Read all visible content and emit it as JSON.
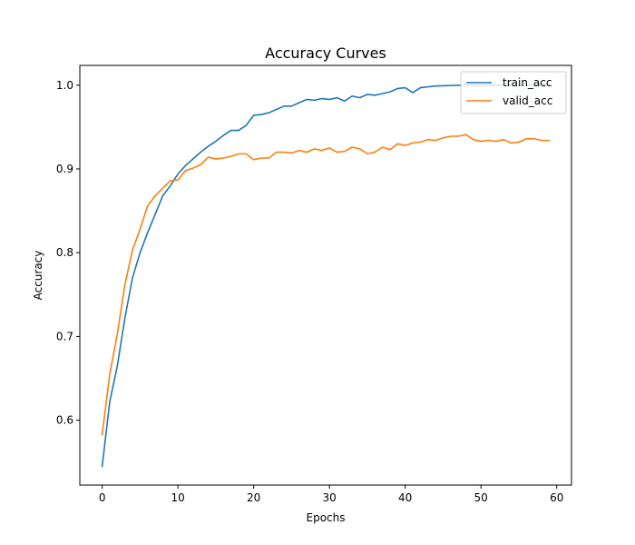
{
  "chart_data": {
    "type": "line",
    "title": "Accuracy Curves",
    "xlabel": "Epochs",
    "ylabel": "Accuracy",
    "xlim": [
      -2.95,
      61.95
    ],
    "ylim": [
      0.5226,
      1.0236
    ],
    "xticks": [
      0,
      10,
      20,
      30,
      40,
      50,
      60
    ],
    "yticks": [
      0.6,
      0.7,
      0.8,
      0.9,
      1.0
    ],
    "ytick_labels": [
      "0.6",
      "0.7",
      "0.8",
      "0.9",
      "1.0"
    ],
    "grid": false,
    "legend_position": "top-right",
    "series": [
      {
        "name": "train_acc",
        "color": "#1f77b4",
        "x": [
          0,
          1,
          2,
          3,
          4,
          5,
          6,
          7,
          8,
          9,
          10,
          11,
          12,
          13,
          14,
          15,
          16,
          17,
          18,
          19,
          20,
          21,
          22,
          23,
          24,
          25,
          26,
          27,
          28,
          29,
          30,
          31,
          32,
          33,
          34,
          35,
          36,
          37,
          38,
          39,
          40,
          41,
          42,
          43,
          44,
          45,
          46,
          47,
          48,
          49,
          50,
          51,
          52,
          53,
          54,
          55,
          56,
          57,
          58,
          59
        ],
        "values": [
          0.545,
          0.622,
          0.665,
          0.722,
          0.77,
          0.8,
          0.824,
          0.846,
          0.868,
          0.88,
          0.894,
          0.904,
          0.912,
          0.92,
          0.927,
          0.933,
          0.94,
          0.946,
          0.946,
          0.952,
          0.964,
          0.965,
          0.967,
          0.971,
          0.975,
          0.975,
          0.979,
          0.983,
          0.982,
          0.984,
          0.983,
          0.985,
          0.981,
          0.987,
          0.985,
          0.989,
          0.988,
          0.99,
          0.992,
          0.996,
          0.997,
          0.991,
          0.997,
          0.998,
          0.999,
          0.9993,
          0.9996,
          0.9998,
          0.9999,
          0.9999,
          1.0,
          1.0,
          1.0,
          1.0,
          1.0,
          1.0,
          1.0,
          1.0,
          1.0,
          1.0
        ]
      },
      {
        "name": "valid_acc",
        "color": "#ff7f0e",
        "x": [
          0,
          1,
          2,
          3,
          4,
          5,
          6,
          7,
          8,
          9,
          10,
          11,
          12,
          13,
          14,
          15,
          16,
          17,
          18,
          19,
          20,
          21,
          22,
          23,
          24,
          25,
          26,
          27,
          28,
          29,
          30,
          31,
          32,
          33,
          34,
          35,
          36,
          37,
          38,
          39,
          40,
          41,
          42,
          43,
          44,
          45,
          46,
          47,
          48,
          49,
          50,
          51,
          52,
          53,
          54,
          55,
          56,
          57,
          58,
          59
        ],
        "values": [
          0.583,
          0.655,
          0.703,
          0.762,
          0.803,
          0.828,
          0.856,
          0.868,
          0.877,
          0.886,
          0.887,
          0.898,
          0.901,
          0.905,
          0.914,
          0.912,
          0.913,
          0.915,
          0.918,
          0.918,
          0.911,
          0.913,
          0.913,
          0.92,
          0.92,
          0.919,
          0.922,
          0.92,
          0.924,
          0.922,
          0.925,
          0.92,
          0.921,
          0.926,
          0.924,
          0.918,
          0.92,
          0.926,
          0.923,
          0.93,
          0.928,
          0.931,
          0.932,
          0.935,
          0.934,
          0.937,
          0.939,
          0.939,
          0.941,
          0.935,
          0.933,
          0.934,
          0.933,
          0.935,
          0.931,
          0.932,
          0.936,
          0.936,
          0.934,
          0.934
        ]
      }
    ]
  }
}
